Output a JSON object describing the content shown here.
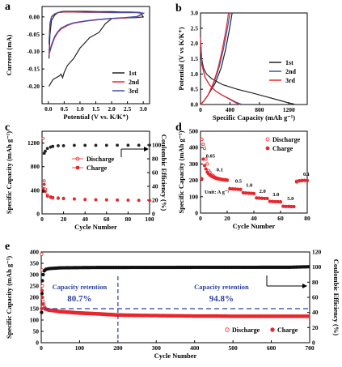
{
  "chart_data": [
    {
      "panel": "a",
      "type": "line",
      "xlabel": "Potential (V vs. K/K⁺)",
      "ylabel": "Current (mA)",
      "xlim": [
        -0.2,
        3.2
      ],
      "ylim": [
        -0.25,
        0.03
      ],
      "xticks": [
        "0.0",
        "0.5",
        "1.0",
        "1.5",
        "2.0",
        "2.5",
        "3.0"
      ],
      "yticks": [
        "0.00",
        "-0.05",
        "-0.10",
        "-0.15",
        "-0.20"
      ],
      "legend": [
        "1st",
        "2nd",
        "3rd"
      ],
      "legend_position": "bottom-right",
      "colors": [
        "#222222",
        "#e8262b",
        "#3b4fa8"
      ],
      "series": [
        {
          "name": "1st",
          "x": [
            0.02,
            0.05,
            0.1,
            0.2,
            0.3,
            0.4,
            0.5,
            0.8,
            1.2,
            1.6,
            2.0,
            2.3,
            2.6,
            2.9,
            3.0,
            2.8,
            2.4,
            2.0,
            1.8,
            1.6,
            1.4,
            1.3,
            1.2,
            1.0,
            0.8,
            0.6,
            0.5,
            0.45,
            0.4,
            0.35,
            0.25,
            0.15,
            0.08,
            0.02
          ],
          "y": [
            -0.12,
            -0.05,
            -0.01,
            0.005,
            0.012,
            0.015,
            0.016,
            0.016,
            0.016,
            0.015,
            0.015,
            0.014,
            0.014,
            0.013,
            0.0,
            -0.002,
            -0.003,
            -0.005,
            -0.02,
            -0.045,
            -0.055,
            -0.06,
            -0.07,
            -0.09,
            -0.12,
            -0.14,
            -0.16,
            -0.175,
            -0.165,
            -0.17,
            -0.175,
            -0.18,
            -0.19,
            -0.2
          ]
        },
        {
          "name": "2nd",
          "x": [
            0.02,
            0.05,
            0.1,
            0.2,
            0.3,
            0.5,
            0.8,
            1.2,
            1.6,
            2.0,
            2.4,
            2.8,
            3.0,
            2.8,
            2.4,
            2.0,
            1.6,
            1.2,
            0.8,
            0.6,
            0.4,
            0.3,
            0.2,
            0.1,
            0.05,
            0.02
          ],
          "y": [
            -0.08,
            -0.02,
            0.0,
            0.008,
            0.012,
            0.014,
            0.014,
            0.013,
            0.013,
            0.012,
            0.012,
            0.012,
            0.01,
            0.0,
            -0.003,
            -0.005,
            -0.008,
            -0.012,
            -0.018,
            -0.025,
            -0.035,
            -0.045,
            -0.06,
            -0.085,
            -0.1,
            -0.11
          ]
        },
        {
          "name": "3rd",
          "x": [
            0.02,
            0.05,
            0.1,
            0.2,
            0.3,
            0.5,
            0.8,
            1.2,
            1.6,
            2.0,
            2.4,
            2.8,
            3.0,
            2.8,
            2.4,
            2.0,
            1.6,
            1.2,
            0.8,
            0.6,
            0.4,
            0.3,
            0.2,
            0.1,
            0.05,
            0.02
          ],
          "y": [
            -0.075,
            -0.018,
            0.001,
            0.009,
            0.013,
            0.015,
            0.015,
            0.014,
            0.014,
            0.013,
            0.013,
            0.013,
            0.011,
            0.001,
            -0.002,
            -0.004,
            -0.007,
            -0.011,
            -0.017,
            -0.023,
            -0.032,
            -0.042,
            -0.056,
            -0.08,
            -0.096,
            -0.105
          ]
        }
      ]
    },
    {
      "panel": "b",
      "type": "line",
      "xlabel": "Specific Capacity (mAh g⁻¹)",
      "ylabel": "Potential (V vs K/K⁺)",
      "xlim": [
        0,
        1450
      ],
      "ylim": [
        0,
        3.0
      ],
      "xticks": [
        "0",
        "400",
        "800",
        "1200"
      ],
      "yticks": [
        "0.0",
        "0.5",
        "1.0",
        "1.5",
        "2.0",
        "2.5",
        "3.0"
      ],
      "legend": [
        "1st",
        "2nd",
        "3rd"
      ],
      "legend_position": "right",
      "colors": [
        "#222222",
        "#3b4fa8",
        "#e8262b"
      ],
      "series": [
        {
          "name": "1st discharge",
          "x": [
            0,
            15,
            40,
            80,
            150,
            300,
            500,
            700,
            900,
            1100,
            1200,
            1260,
            1280
          ],
          "y": [
            2.0,
            1.5,
            1.2,
            1.0,
            0.85,
            0.65,
            0.5,
            0.38,
            0.25,
            0.12,
            0.05,
            0.02,
            0.0
          ]
        },
        {
          "name": "1st charge",
          "x": [
            0,
            40,
            100,
            200,
            280,
            340,
            380,
            410,
            430
          ],
          "y": [
            0.0,
            0.1,
            0.3,
            0.7,
            1.2,
            1.8,
            2.3,
            2.7,
            3.0
          ]
        },
        {
          "name": "2nd discharge",
          "x": [
            0,
            20,
            60,
            120,
            200,
            300,
            400,
            480,
            540,
            570
          ],
          "y": [
            2.2,
            1.3,
            0.9,
            0.65,
            0.45,
            0.3,
            0.18,
            0.08,
            0.02,
            0.0
          ]
        },
        {
          "name": "2nd charge",
          "x": [
            0,
            40,
            100,
            180,
            250,
            310,
            350,
            380,
            400
          ],
          "y": [
            0.0,
            0.1,
            0.3,
            0.7,
            1.2,
            1.8,
            2.3,
            2.7,
            3.0
          ]
        },
        {
          "name": "3rd discharge",
          "x": [
            0,
            20,
            60,
            120,
            200,
            300,
            390,
            460,
            510,
            540
          ],
          "y": [
            2.2,
            1.3,
            0.9,
            0.65,
            0.45,
            0.3,
            0.18,
            0.08,
            0.02,
            0.0
          ]
        },
        {
          "name": "3rd charge",
          "x": [
            0,
            40,
            100,
            175,
            240,
            295,
            335,
            362,
            380
          ],
          "y": [
            0.0,
            0.1,
            0.3,
            0.7,
            1.2,
            1.8,
            2.3,
            2.7,
            3.0
          ]
        }
      ]
    },
    {
      "panel": "c",
      "type": "scatter",
      "xlabel": "Cycle Number",
      "ylabel": "Specific Capacity (mAh g⁻¹)",
      "ylabel_right": "Coulombic Efficiency (%)",
      "xlim": [
        0,
        100
      ],
      "ylim": [
        0,
        1400
      ],
      "ylim_right": [
        0,
        120
      ],
      "xticks": [
        "0",
        "20",
        "40",
        "60",
        "80",
        "100"
      ],
      "yticks": [
        "0",
        "400",
        "800",
        "1200"
      ],
      "yticks_right": [
        "0",
        "20",
        "40",
        "60",
        "80",
        "100"
      ],
      "legend": [
        "Discharge",
        "Charge"
      ],
      "legend_position": "center",
      "colors": [
        "#e8262b",
        "#222222"
      ],
      "series": [
        {
          "name": "Discharge",
          "axis": "left",
          "x": [
            1,
            2,
            3,
            5,
            8,
            10,
            15,
            20,
            30,
            40,
            50,
            60,
            70,
            80,
            90,
            100
          ],
          "y": [
            1280,
            560,
            420,
            320,
            290,
            280,
            270,
            265,
            255,
            245,
            240,
            238,
            235,
            233,
            230,
            228
          ]
        },
        {
          "name": "Charge",
          "axis": "left",
          "x": [
            1,
            2,
            3,
            5,
            8,
            10,
            15,
            20,
            30,
            40,
            50,
            60,
            70,
            80,
            90,
            100
          ],
          "y": [
            430,
            500,
            380,
            300,
            280,
            270,
            262,
            258,
            250,
            242,
            238,
            236,
            233,
            231,
            229,
            227
          ]
        },
        {
          "name": "Coulombic Efficiency",
          "axis": "right",
          "x": [
            1,
            2,
            3,
            5,
            8,
            10,
            15,
            20,
            30,
            40,
            50,
            60,
            70,
            80,
            90,
            100
          ],
          "y": [
            33,
            88,
            91,
            95,
            97,
            98,
            99,
            99,
            99.5,
            99.5,
            99.6,
            99.6,
            99.7,
            99.7,
            99.7,
            99.8
          ]
        }
      ]
    },
    {
      "panel": "d",
      "type": "scatter",
      "xlabel": "Cycle Number",
      "ylabel": "Specific Capacity (mAh g⁻¹)",
      "xlim": [
        0,
        80
      ],
      "ylim": [
        0,
        500
      ],
      "xticks": [
        "0",
        "20",
        "40",
        "60",
        "80"
      ],
      "yticks": [
        "0",
        "100",
        "200",
        "300",
        "400",
        "500"
      ],
      "legend": [
        "Discharge",
        "Charge"
      ],
      "legend_position": "top-right",
      "colors": [
        "#e8262b",
        "#e8262b"
      ],
      "unit_label": "Unit: A g⁻¹",
      "rate_labels": [
        "0.05",
        "0.1",
        "0.5",
        "1.0",
        "2.0",
        "3.0",
        "5.0",
        "0.1"
      ],
      "series": [
        {
          "name": "Discharge",
          "x": [
            1,
            2,
            3,
            4,
            5,
            6,
            7,
            8,
            9,
            10,
            11,
            12,
            13,
            14,
            15,
            16,
            17,
            18,
            19,
            20,
            22,
            24,
            26,
            28,
            30,
            32,
            34,
            36,
            38,
            40,
            42,
            44,
            46,
            48,
            50,
            52,
            54,
            56,
            58,
            60,
            62,
            64,
            66,
            68,
            70,
            72,
            74,
            76,
            78,
            80
          ],
          "y": [
            450,
            420,
            395,
            330,
            300,
            260,
            250,
            235,
            230,
            225,
            218,
            214,
            212,
            210,
            208,
            206,
            205,
            204,
            203,
            202,
            150,
            148,
            147,
            146,
            145,
            125,
            123,
            122,
            121,
            120,
            93,
            92,
            91,
            90,
            90,
            72,
            71,
            70,
            70,
            69,
            42,
            41,
            41,
            40,
            40,
            195,
            198,
            200,
            200,
            199
          ]
        },
        {
          "name": "Charge",
          "x": [
            1,
            2,
            3,
            4,
            5,
            6,
            7,
            8,
            9,
            10,
            11,
            12,
            13,
            14,
            15,
            16,
            17,
            18,
            19,
            20,
            22,
            24,
            26,
            28,
            30,
            32,
            34,
            36,
            38,
            40,
            42,
            44,
            46,
            48,
            50,
            52,
            54,
            56,
            58,
            60,
            62,
            64,
            66,
            68,
            70,
            72,
            74,
            76,
            78,
            80
          ],
          "y": [
            210,
            330,
            290,
            270,
            250,
            240,
            232,
            226,
            222,
            218,
            214,
            211,
            209,
            207,
            206,
            204,
            203,
            202,
            201,
            200,
            148,
            147,
            146,
            145,
            144,
            124,
            122,
            121,
            120,
            119,
            92,
            91,
            90,
            89,
            89,
            71,
            70,
            69,
            69,
            68,
            41,
            40,
            40,
            39,
            39,
            190,
            196,
            198,
            199,
            198
          ]
        }
      ]
    },
    {
      "panel": "e",
      "type": "scatter",
      "xlabel": "Cycle Number",
      "ylabel": "Specific Capacity (mAh g⁻¹)",
      "ylabel_right": "Coulombic Efficiency (%)",
      "xlim": [
        0,
        700
      ],
      "ylim": [
        0,
        400
      ],
      "ylim_right": [
        0,
        120
      ],
      "xticks": [
        "0",
        "100",
        "200",
        "300",
        "400",
        "500",
        "600",
        "700"
      ],
      "yticks": [
        "0",
        "50",
        "100",
        "150",
        "200",
        "250",
        "300",
        "350",
        "400"
      ],
      "yticks_right": [
        "0",
        "20",
        "40",
        "60",
        "80",
        "100",
        "120"
      ],
      "legend": [
        "Discharge",
        "Charge"
      ],
      "legend_position": "bottom-right",
      "colors": [
        "#e8262b",
        "#111111",
        "#2b3fa6"
      ],
      "annotations": [
        {
          "title": "Capacity retention",
          "value": "80.7%"
        },
        {
          "title": "Capacity retention",
          "value": "94.8%"
        }
      ],
      "reference_line_x": 200,
      "reference_line_y_right": 45,
      "series": [
        {
          "name": "Discharge",
          "axis": "left",
          "x": [
            1,
            2,
            3,
            5,
            10,
            20,
            50,
            100,
            150,
            200,
            250,
            300,
            350,
            400,
            450,
            500,
            550,
            600,
            650,
            700
          ],
          "y": [
            390,
            320,
            250,
            180,
            150,
            145,
            138,
            132,
            128,
            123,
            121,
            120,
            119,
            118,
            118,
            117,
            117,
            117,
            117,
            117
          ]
        },
        {
          "name": "Charge",
          "axis": "left",
          "x": [
            1,
            2,
            3,
            5,
            10,
            20,
            50,
            100,
            150,
            200,
            250,
            300,
            350,
            400,
            450,
            500,
            550,
            600,
            650,
            700
          ],
          "y": [
            150,
            230,
            200,
            170,
            148,
            143,
            136,
            130,
            126,
            121,
            120,
            119,
            118,
            117,
            117,
            116,
            116,
            116,
            116,
            116
          ]
        },
        {
          "name": "Coulombic Efficiency",
          "axis": "right",
          "x": [
            1,
            2,
            3,
            5,
            8,
            12,
            20,
            50,
            100,
            150,
            200,
            250,
            300,
            350,
            400,
            450,
            500,
            550,
            600,
            650,
            700
          ],
          "y": [
            40,
            65,
            82,
            90,
            95,
            97,
            98,
            99,
            99.3,
            99.5,
            99.5,
            99.6,
            99.6,
            99.6,
            99.7,
            99.7,
            99.7,
            99.7,
            99.8,
            99.8,
            100.5
          ]
        }
      ]
    }
  ]
}
